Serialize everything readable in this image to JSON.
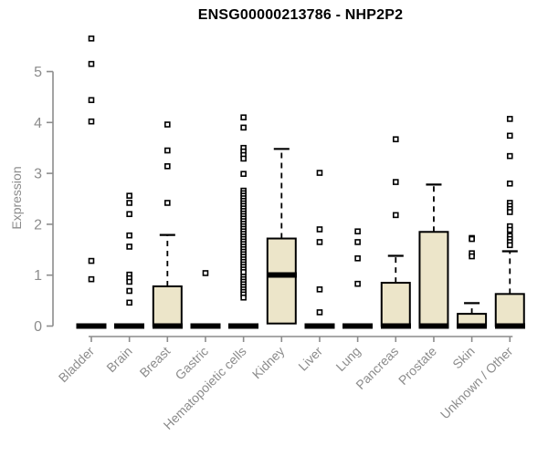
{
  "chart_data": {
    "type": "boxplot",
    "title": "ENSG00000213786 - NHP2P2",
    "ylabel": "Expression",
    "xlabel": "",
    "ylim": [
      0,
      5.8
    ],
    "yticks": [
      0,
      1,
      2,
      3,
      4,
      5
    ],
    "grid": false,
    "legend": "none",
    "colors": {
      "box_fill": "#ece5c9",
      "box_stroke": "#000000",
      "median": "#000000",
      "outlier_stroke": "#000000",
      "outlier_fill": "#ffffff",
      "axis": "#8c8c8c",
      "axis_text": "#8c8c8c",
      "title_text": "#000000",
      "background": "#ffffff"
    },
    "categories": [
      "Bladder",
      "Brain",
      "Breast",
      "Gastric",
      "Hematopoietic cells",
      "Kidney",
      "Liver",
      "Lung",
      "Pancreas",
      "Prostate",
      "Skin",
      "Unknown / Other"
    ],
    "series": [
      {
        "name": "Bladder",
        "q1": 0,
        "median": 0,
        "q3": 0,
        "whisker_low": 0,
        "whisker_high": 0,
        "outliers": [
          5.65,
          5.15,
          4.44,
          4.02,
          1.28,
          0.92
        ]
      },
      {
        "name": "Brain",
        "q1": 0,
        "median": 0,
        "q3": 0,
        "whisker_low": 0,
        "whisker_high": 0,
        "outliers": [
          2.56,
          2.42,
          2.2,
          1.78,
          1.56,
          1.01,
          0.94,
          0.87,
          0.69,
          0.46
        ]
      },
      {
        "name": "Breast",
        "q1": 0,
        "median": 0,
        "q3": 0.78,
        "whisker_low": 0,
        "whisker_high": 1.79,
        "outliers": [
          3.96,
          3.45,
          3.14,
          2.42
        ]
      },
      {
        "name": "Gastric",
        "q1": 0,
        "median": 0,
        "q3": 0,
        "whisker_low": 0,
        "whisker_high": 0,
        "outliers": [
          1.04
        ]
      },
      {
        "name": "Hematopoietic cells",
        "q1": 0,
        "median": 0,
        "q3": 0,
        "whisker_low": 0,
        "whisker_high": 0,
        "outliers": [
          4.1,
          3.9,
          3.5,
          3.43,
          3.36,
          3.29,
          2.99,
          2.66,
          2.61,
          2.56,
          2.51,
          2.46,
          2.41,
          2.36,
          2.31,
          2.26,
          2.21,
          2.16,
          2.11,
          2.06,
          2.01,
          1.96,
          1.91,
          1.86,
          1.81,
          1.76,
          1.71,
          1.66,
          1.61,
          1.56,
          1.51,
          1.46,
          1.41,
          1.36,
          1.31,
          1.26,
          1.21,
          1.16,
          1.11,
          1.06,
          0.97,
          0.92,
          0.87,
          0.82,
          0.77,
          0.72,
          0.67,
          0.62,
          0.56
        ]
      },
      {
        "name": "Kidney",
        "q1": 0.05,
        "median": 1.0,
        "q3": 1.72,
        "whisker_low": 0.05,
        "whisker_high": 3.48,
        "outliers": []
      },
      {
        "name": "Liver",
        "q1": 0,
        "median": 0,
        "q3": 0,
        "whisker_low": 0,
        "whisker_high": 0,
        "outliers": [
          3.01,
          1.9,
          1.65,
          0.72,
          0.27
        ]
      },
      {
        "name": "Lung",
        "q1": 0,
        "median": 0,
        "q3": 0,
        "whisker_low": 0,
        "whisker_high": 0,
        "outliers": [
          1.86,
          1.65,
          1.33,
          0.83
        ]
      },
      {
        "name": "Pancreas",
        "q1": 0,
        "median": 0,
        "q3": 0.85,
        "whisker_low": 0,
        "whisker_high": 1.38,
        "outliers": [
          3.67,
          2.83,
          2.18
        ]
      },
      {
        "name": "Prostate",
        "q1": 0,
        "median": 0,
        "q3": 1.85,
        "whisker_low": 0,
        "whisker_high": 2.78,
        "outliers": []
      },
      {
        "name": "Skin",
        "q1": 0,
        "median": 0,
        "q3": 0.24,
        "whisker_low": 0,
        "whisker_high": 0.45,
        "outliers": [
          1.73,
          1.71,
          1.43,
          1.37
        ]
      },
      {
        "name": "Unknown / Other",
        "q1": 0,
        "median": 0,
        "q3": 0.63,
        "whisker_low": 0,
        "whisker_high": 1.47,
        "outliers": [
          4.07,
          3.74,
          3.34,
          2.8,
          2.42,
          2.36,
          2.3,
          2.24,
          1.96,
          1.89,
          1.77,
          1.71,
          1.65,
          1.59
        ]
      }
    ]
  }
}
